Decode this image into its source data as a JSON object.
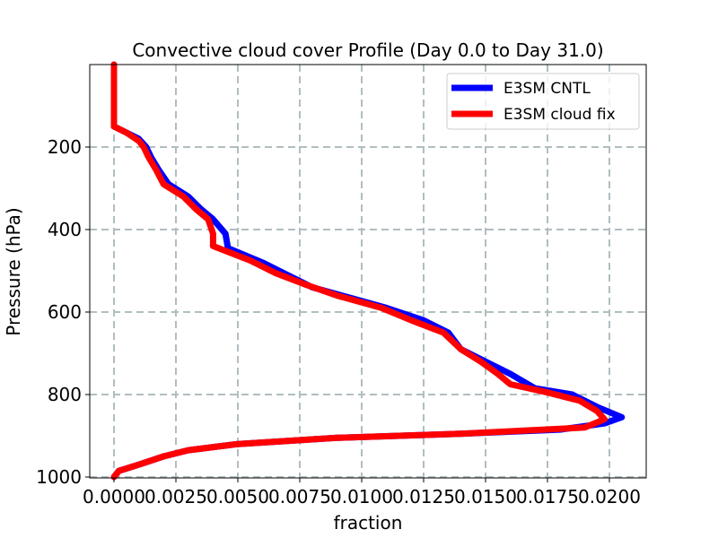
{
  "chart_data": {
    "type": "line",
    "title": "Convective cloud cover Profile (Day 0.0 to Day 31.0)",
    "xlabel": "fraction",
    "ylabel": "Pressure (hPa)",
    "xlim": [
      -0.001,
      0.0215
    ],
    "ylim": [
      1000,
      0
    ],
    "y_inverted": true,
    "xticks": [
      "0.0000",
      "0.0025",
      "0.0050",
      "0.0075",
      "0.0100",
      "0.0125",
      "0.0150",
      "0.0175",
      "0.0200"
    ],
    "yticks": [
      "200",
      "400",
      "600",
      "800",
      "1000"
    ],
    "grid": true,
    "legend_position": "upper right",
    "series": [
      {
        "name": "E3SM CNTL",
        "color": "#0000ff",
        "points": [
          [
            0.0,
            0
          ],
          [
            0.0,
            150
          ],
          [
            0.0005,
            165
          ],
          [
            0.001,
            180
          ],
          [
            0.0013,
            200
          ],
          [
            0.0015,
            225
          ],
          [
            0.0018,
            255
          ],
          [
            0.0022,
            290
          ],
          [
            0.003,
            320
          ],
          [
            0.0035,
            350
          ],
          [
            0.004,
            375
          ],
          [
            0.0045,
            410
          ],
          [
            0.0046,
            445
          ],
          [
            0.006,
            480
          ],
          [
            0.007,
            510
          ],
          [
            0.008,
            540
          ],
          [
            0.0095,
            565
          ],
          [
            0.011,
            590
          ],
          [
            0.0125,
            620
          ],
          [
            0.0135,
            650
          ],
          [
            0.014,
            690
          ],
          [
            0.015,
            720
          ],
          [
            0.016,
            750
          ],
          [
            0.017,
            785
          ],
          [
            0.0185,
            800
          ],
          [
            0.0195,
            830
          ],
          [
            0.0205,
            855
          ],
          [
            0.0198,
            870
          ],
          [
            0.018,
            885
          ],
          [
            0.014,
            895
          ],
          [
            0.009,
            905
          ],
          [
            0.005,
            920
          ],
          [
            0.003,
            935
          ],
          [
            0.002,
            950
          ],
          [
            0.001,
            970
          ],
          [
            0.0002,
            985
          ],
          [
            0.0,
            1000
          ]
        ]
      },
      {
        "name": "E3SM cloud fix",
        "color": "#ff0000",
        "points": [
          [
            0.0,
            0
          ],
          [
            0.0,
            150
          ],
          [
            0.0005,
            165
          ],
          [
            0.001,
            185
          ],
          [
            0.0012,
            200
          ],
          [
            0.0014,
            225
          ],
          [
            0.0017,
            255
          ],
          [
            0.002,
            290
          ],
          [
            0.0028,
            320
          ],
          [
            0.0033,
            350
          ],
          [
            0.0038,
            375
          ],
          [
            0.004,
            410
          ],
          [
            0.004,
            440
          ],
          [
            0.0055,
            475
          ],
          [
            0.0065,
            505
          ],
          [
            0.0078,
            535
          ],
          [
            0.009,
            560
          ],
          [
            0.0108,
            590
          ],
          [
            0.012,
            620
          ],
          [
            0.0133,
            650
          ],
          [
            0.014,
            690
          ],
          [
            0.0148,
            720
          ],
          [
            0.0155,
            750
          ],
          [
            0.016,
            775
          ],
          [
            0.0175,
            795
          ],
          [
            0.0188,
            815
          ],
          [
            0.0195,
            840
          ],
          [
            0.0198,
            860
          ],
          [
            0.019,
            880
          ],
          [
            0.014,
            895
          ],
          [
            0.009,
            905
          ],
          [
            0.005,
            920
          ],
          [
            0.003,
            935
          ],
          [
            0.002,
            950
          ],
          [
            0.001,
            970
          ],
          [
            0.0002,
            985
          ],
          [
            0.0,
            1000
          ]
        ]
      }
    ]
  }
}
